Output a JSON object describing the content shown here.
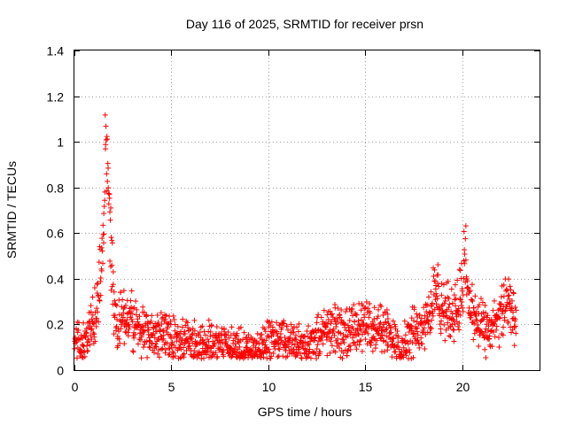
{
  "chart_data": {
    "type": "scatter",
    "title": "Day 116 of 2025, SRMTID for receiver prsn",
    "xlabel": "GPS time / hours",
    "ylabel": "SRMTID / TECUs",
    "xlim": [
      0,
      24
    ],
    "ylim": [
      0,
      1.4
    ],
    "xticks": [
      0,
      5,
      10,
      15,
      20
    ],
    "yticks": [
      0,
      0.2,
      0.4,
      0.6,
      0.8,
      1,
      1.2,
      1.4
    ],
    "ytick_labels": [
      "0",
      "0.2",
      "0.4",
      "0.6",
      "0.8",
      "1",
      "1.2",
      "1.4"
    ],
    "grid": true,
    "marker": "+",
    "color": "#ff0000",
    "series": [
      {
        "name": "SRMTID",
        "profile": [
          [
            0.0,
            0.15
          ],
          [
            0.3,
            0.1
          ],
          [
            0.6,
            0.14
          ],
          [
            0.9,
            0.2
          ],
          [
            1.2,
            0.26
          ],
          [
            1.5,
            0.6
          ],
          [
            1.6,
            0.95
          ],
          [
            1.75,
            0.78
          ],
          [
            1.9,
            0.55
          ],
          [
            2.0,
            0.3
          ],
          [
            2.2,
            0.18
          ],
          [
            2.6,
            0.25
          ],
          [
            2.9,
            0.22
          ],
          [
            3.5,
            0.17
          ],
          [
            4.5,
            0.16
          ],
          [
            5.5,
            0.13
          ],
          [
            6.5,
            0.12
          ],
          [
            7.5,
            0.12
          ],
          [
            8.5,
            0.09
          ],
          [
            9.3,
            0.08
          ],
          [
            10.0,
            0.14
          ],
          [
            11.0,
            0.13
          ],
          [
            12.0,
            0.11
          ],
          [
            13.0,
            0.17
          ],
          [
            14.0,
            0.17
          ],
          [
            15.0,
            0.19
          ],
          [
            16.0,
            0.18
          ],
          [
            16.8,
            0.1
          ],
          [
            17.5,
            0.17
          ],
          [
            18.3,
            0.24
          ],
          [
            18.6,
            0.34
          ],
          [
            19.0,
            0.26
          ],
          [
            19.5,
            0.25
          ],
          [
            20.05,
            0.35
          ],
          [
            20.15,
            0.5
          ],
          [
            20.4,
            0.28
          ],
          [
            21.0,
            0.18
          ],
          [
            21.5,
            0.17
          ],
          [
            22.0,
            0.24
          ],
          [
            22.4,
            0.3
          ],
          [
            22.8,
            0.2
          ]
        ],
        "noise": 0.05,
        "x_range": [
          0,
          22.8
        ],
        "n_points": 1600
      }
    ]
  }
}
